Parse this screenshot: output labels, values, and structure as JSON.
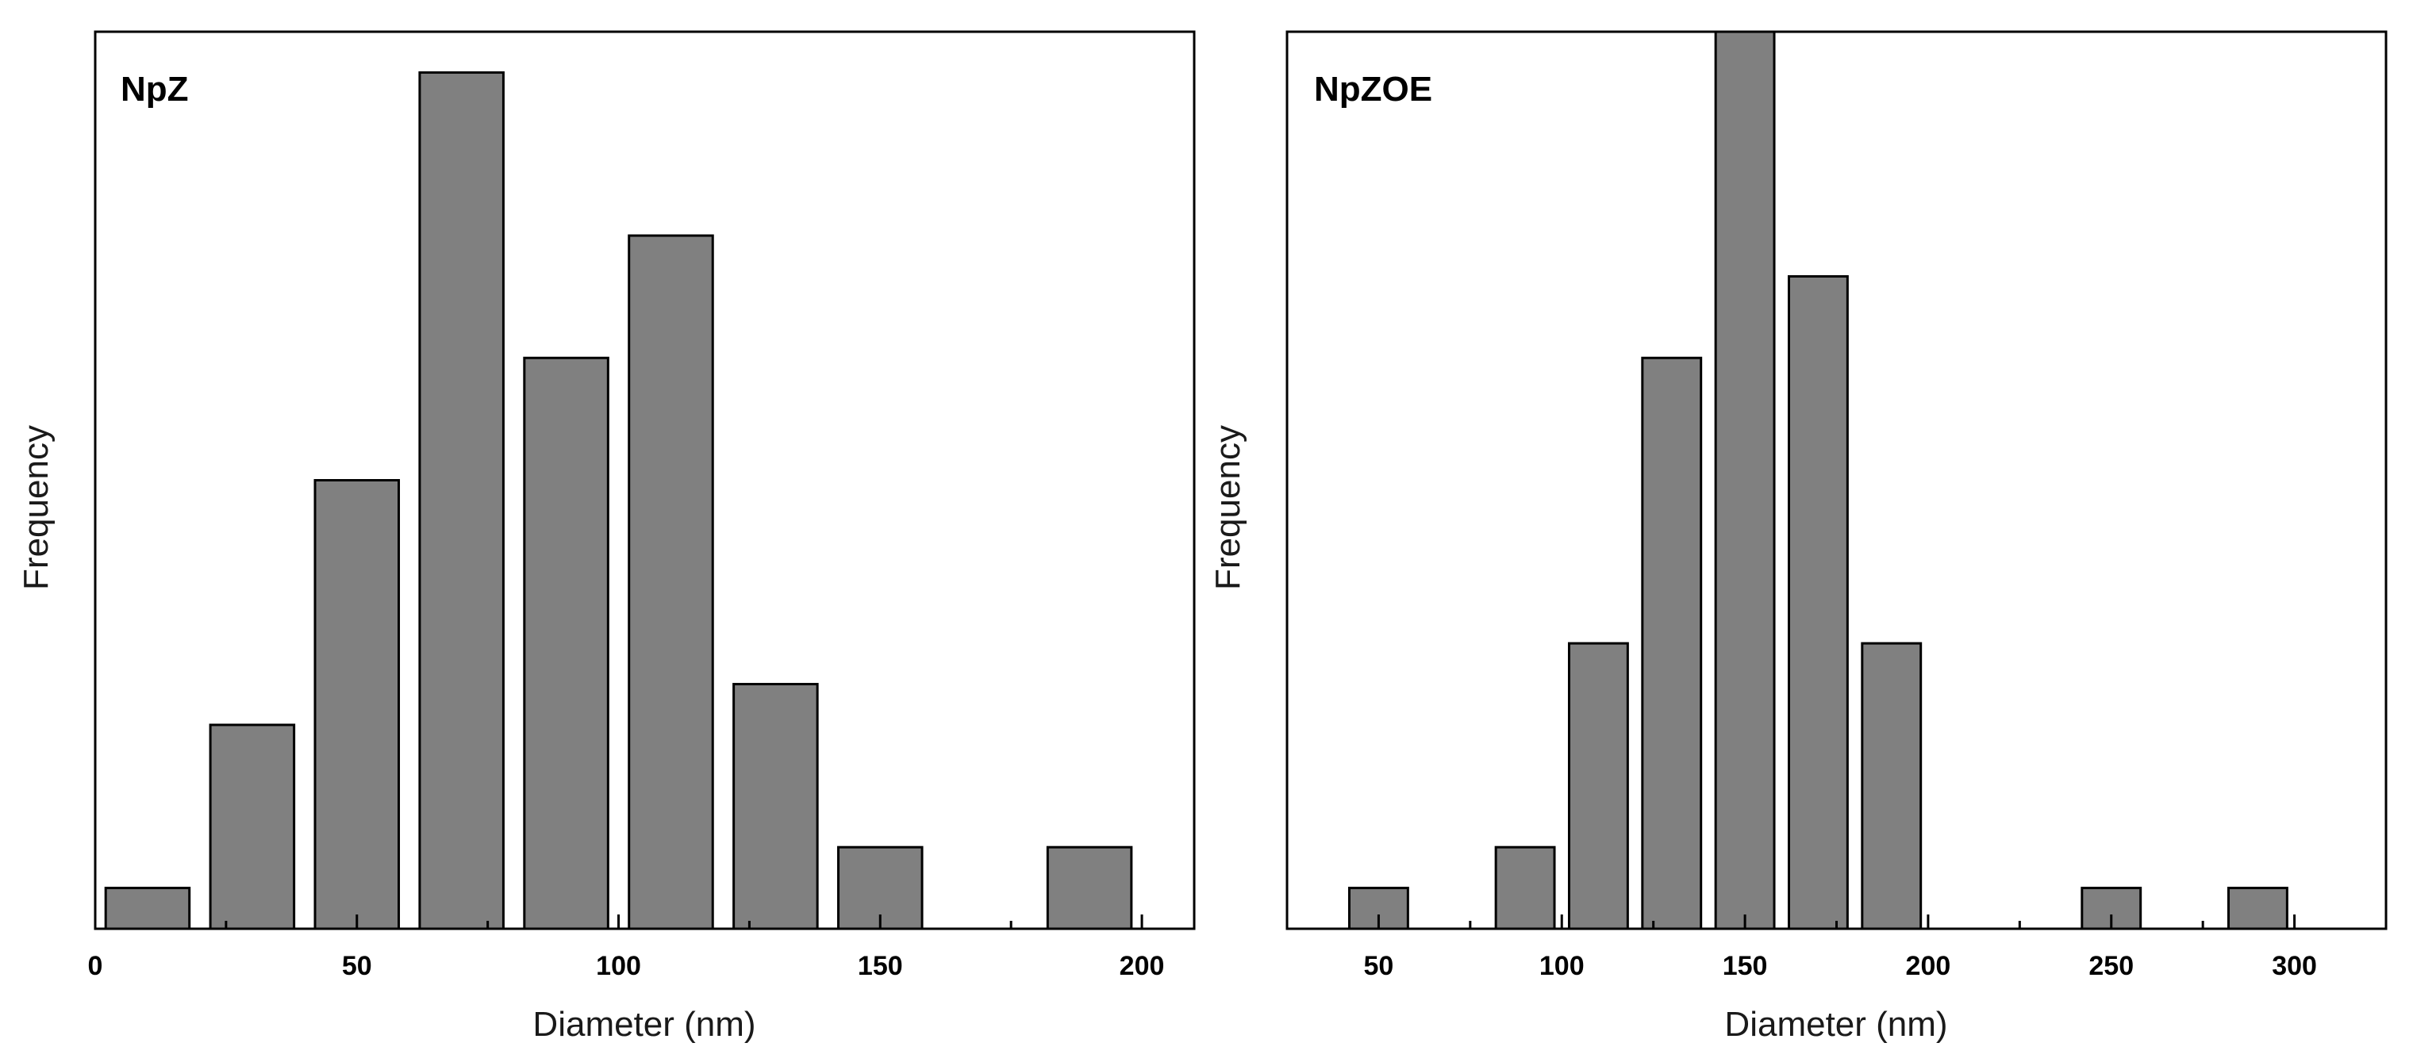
{
  "chart_data": [
    {
      "type": "bar",
      "title": "NpZ",
      "xlabel": "Diameter (nm)",
      "ylabel": "Frequency",
      "xlim": [
        0,
        210
      ],
      "ylim": [
        0,
        22
      ],
      "bin_width": 16,
      "bar_color": "#808080",
      "x": [
        10,
        30,
        50,
        70,
        90,
        110,
        130,
        150,
        190
      ],
      "values": [
        1,
        5,
        11,
        21,
        14,
        17,
        6,
        2,
        2
      ],
      "x_ticks": [
        0,
        50,
        100,
        150,
        200
      ],
      "x_minor_ticks": [
        25,
        75,
        125,
        175
      ]
    },
    {
      "type": "bar",
      "title": "NpZOE",
      "xlabel": "Diameter (nm)",
      "ylabel": "Frequency",
      "xlim": [
        25,
        325
      ],
      "ylim": [
        0,
        22
      ],
      "bin_width": 16,
      "bar_color": "#808080",
      "x": [
        50,
        90,
        110,
        130,
        150,
        170,
        190,
        250,
        290
      ],
      "values": [
        1,
        2,
        7,
        14,
        22,
        16,
        7,
        1,
        1
      ],
      "x_ticks": [
        50,
        100,
        150,
        200,
        250,
        300
      ],
      "x_minor_ticks": [
        75,
        125,
        175,
        225,
        275
      ]
    }
  ]
}
